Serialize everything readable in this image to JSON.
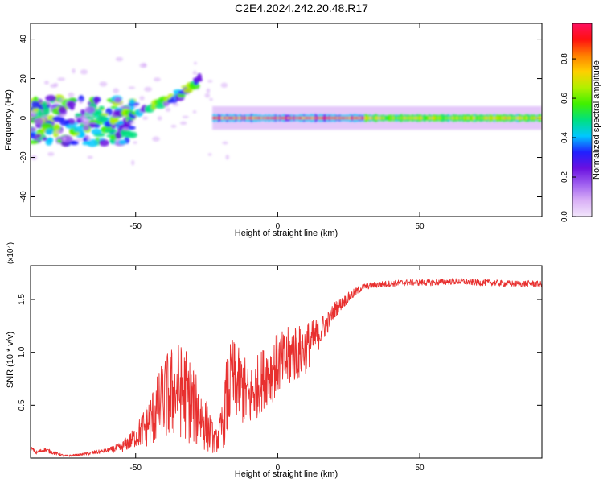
{
  "title": "C2E4.2024.242.20.48.R17",
  "colors": {
    "snr_line": "#e8302f",
    "axis": "#000000",
    "colormap": [
      "#f2e6fb",
      "#d9b0f6",
      "#a060f0",
      "#6a10e0",
      "#2020ff",
      "#00c8ff",
      "#00e080",
      "#40f000",
      "#b0f000",
      "#ffd000",
      "#ff8000",
      "#ff1010",
      "#ff1060"
    ]
  },
  "chart_data": [
    {
      "type": "heatmap",
      "name": "spectrogram",
      "xlabel": "Height of straight line (km)",
      "ylabel": "Frequency (Hz)",
      "xlim": [
        -87,
        93
      ],
      "ylim": [
        -50,
        48
      ],
      "xticks": [
        -50,
        0,
        50
      ],
      "xtick_labels": [
        "-50",
        "0",
        "50"
      ],
      "yticks": [
        -40,
        -20,
        0,
        20,
        40
      ],
      "ytick_labels": [
        "-40",
        "-20",
        "0",
        "20",
        "40"
      ],
      "colorbar": {
        "label": "Normalized spectral amplitude",
        "range": [
          0,
          0.98
        ],
        "ticks": [
          0.0,
          0.2,
          0.4,
          0.6,
          0.8
        ],
        "tick_labels": [
          "0.0",
          "0.2",
          "0.4",
          "0.6",
          "0.8"
        ]
      },
      "features": [
        {
          "feature": "steady band",
          "x_range": [
            -23,
            93
          ],
          "frequency": 0,
          "half_width": 2,
          "amplitude_peak_x_range": [
            -23,
            30
          ]
        },
        {
          "feature": "scattered blobs",
          "x_range": [
            -87,
            -50
          ],
          "frequency_range": [
            -13,
            10
          ]
        },
        {
          "feature": "rising branch",
          "x": [
            -58,
            -45,
            -35,
            -27
          ],
          "frequency": [
            0,
            5,
            12,
            20
          ]
        }
      ]
    },
    {
      "type": "line",
      "name": "snr",
      "xlabel": "Height of straight line (km)",
      "ylabel": "SNR (10 * v/v)",
      "y_scale_label": "(x10⁴)",
      "xlim": [
        -87,
        93
      ],
      "ylim": [
        0,
        1.82
      ],
      "xticks": [
        -50,
        0,
        50
      ],
      "xtick_labels": [
        "-50",
        "0",
        "50"
      ],
      "yticks": [
        0.5,
        1.0,
        1.5
      ],
      "ytick_labels": [
        "0.5",
        "1.0",
        "1.5"
      ],
      "series": [
        {
          "x": [
            -87,
            -85,
            -82,
            -80,
            -75,
            -70,
            -65,
            -60,
            -55,
            -50,
            -45,
            -40,
            -38,
            -35,
            -32,
            -30,
            -27,
            -25,
            -22,
            -20,
            -18,
            -16,
            -14,
            -12,
            -10,
            -8,
            -6,
            -4,
            -2,
            0,
            2,
            4,
            6,
            8,
            10,
            12,
            15,
            18,
            20,
            22,
            25,
            28,
            30,
            35,
            40,
            45,
            50,
            55,
            60,
            65,
            70,
            75,
            80,
            85,
            90,
            93
          ],
          "y": [
            0.1,
            0.05,
            0.08,
            0.06,
            0.02,
            0.03,
            0.05,
            0.07,
            0.1,
            0.2,
            0.35,
            0.55,
            0.6,
            0.65,
            0.6,
            0.5,
            0.4,
            0.3,
            0.15,
            0.25,
            0.55,
            0.75,
            0.7,
            0.65,
            0.55,
            0.65,
            0.72,
            0.8,
            0.82,
            0.9,
            0.9,
            0.95,
            1.0,
            1.0,
            1.05,
            1.1,
            1.2,
            1.3,
            1.4,
            1.45,
            1.52,
            1.58,
            1.62,
            1.64,
            1.65,
            1.66,
            1.66,
            1.66,
            1.67,
            1.67,
            1.66,
            1.66,
            1.65,
            1.65,
            1.65,
            1.64
          ],
          "noise_amplitude": [
            0.02,
            0.02,
            0.02,
            0.02,
            0.01,
            0.01,
            0.02,
            0.02,
            0.05,
            0.1,
            0.25,
            0.4,
            0.45,
            0.45,
            0.45,
            0.4,
            0.3,
            0.25,
            0.1,
            0.2,
            0.4,
            0.4,
            0.35,
            0.35,
            0.3,
            0.3,
            0.3,
            0.3,
            0.3,
            0.3,
            0.3,
            0.3,
            0.3,
            0.25,
            0.25,
            0.2,
            0.15,
            0.1,
            0.08,
            0.06,
            0.05,
            0.04,
            0.03,
            0.03,
            0.03,
            0.03,
            0.03,
            0.03,
            0.03,
            0.03,
            0.03,
            0.03,
            0.03,
            0.03,
            0.03,
            0.03
          ]
        }
      ]
    }
  ]
}
